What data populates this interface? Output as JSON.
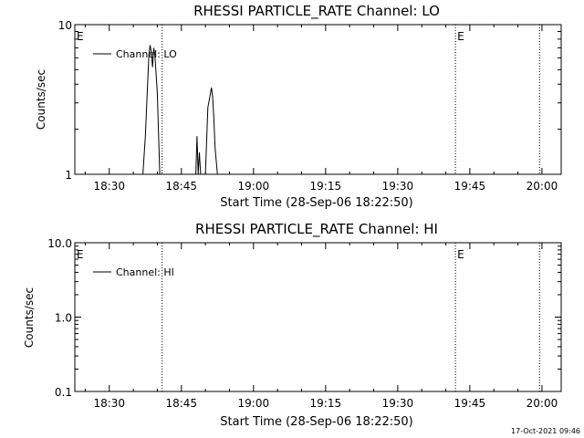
{
  "footer": {
    "timestamp": "17-Oct-2021 09:46"
  },
  "chart_data": [
    {
      "type": "line",
      "title": "RHESSI PARTICLE_RATE Channel: LO",
      "xlabel": "Start Time (28-Sep-06 18:22:50)",
      "ylabel": "Counts/sec",
      "yscale": "log",
      "ylim": [
        1,
        10
      ],
      "xlim": [
        "18:22:50",
        "20:04:00"
      ],
      "y_tick_labels": [
        "1",
        "10"
      ],
      "x_ticks": [
        "18:30",
        "18:45",
        "19:00",
        "19:15",
        "19:30",
        "19:45",
        "20:00"
      ],
      "legend": {
        "label": "Channel: LO",
        "placement": "top-left"
      },
      "markers": [
        {
          "label": "E",
          "time": "18:22:50"
        },
        {
          "label": "",
          "time": "18:41:00"
        },
        {
          "label": "E",
          "time": "19:42:00"
        },
        {
          "label": "",
          "time": "19:59:30"
        }
      ],
      "series": [
        {
          "x": [
            "18:36:30",
            "18:37:00",
            "18:37:30",
            "18:38:00",
            "18:38:15",
            "18:38:30",
            "18:38:45",
            "18:39:00",
            "18:39:15",
            "18:39:30",
            "18:40:00",
            "18:40:30",
            "18:41:00",
            "18:48:00",
            "18:48:15",
            "18:48:30",
            "18:48:45",
            "18:49:00",
            "18:49:15",
            "18:49:30",
            "18:50:00",
            "18:50:30",
            "18:51:00",
            "18:51:15",
            "18:51:30",
            "18:51:45",
            "18:52:00",
            "18:52:30",
            "18:53:00"
          ],
          "values": [
            1,
            1,
            1.8,
            4.2,
            6.3,
            7.3,
            6.5,
            5.2,
            7.0,
            6.2,
            3.5,
            1,
            1,
            1,
            1.8,
            1,
            1.4,
            1,
            1,
            1,
            1,
            2.8,
            3.4,
            3.8,
            3.3,
            2.4,
            1.5,
            1,
            1
          ]
        }
      ]
    },
    {
      "type": "line",
      "title": "RHESSI PARTICLE_RATE Channel: HI",
      "xlabel": "Start Time (28-Sep-06 18:22:50)",
      "ylabel": "Counts/sec",
      "yscale": "log",
      "ylim": [
        0.1,
        10
      ],
      "xlim": [
        "18:22:50",
        "20:04:00"
      ],
      "y_tick_labels": [
        "0.1",
        "1.0",
        "10.0"
      ],
      "x_ticks": [
        "18:30",
        "18:45",
        "19:00",
        "19:15",
        "19:30",
        "19:45",
        "20:00"
      ],
      "legend": {
        "label": "Channel: HI",
        "placement": "top-left"
      },
      "markers": [
        {
          "label": "E",
          "time": "18:22:50"
        },
        {
          "label": "",
          "time": "18:41:00"
        },
        {
          "label": "E",
          "time": "19:42:00"
        },
        {
          "label": "",
          "time": "19:59:30"
        }
      ],
      "series": [
        {
          "x": [],
          "values": []
        }
      ]
    }
  ]
}
